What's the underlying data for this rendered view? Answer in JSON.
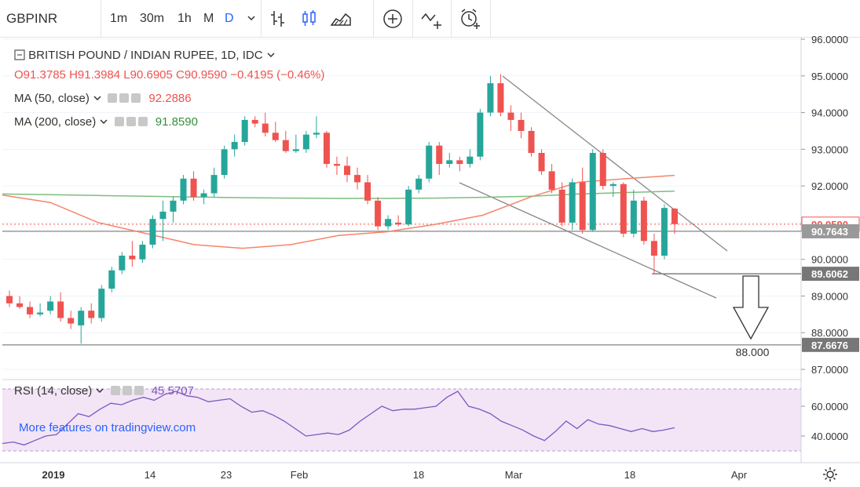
{
  "toolbar": {
    "symbol": "GBPINR",
    "intervals": [
      "1m",
      "30m",
      "1h",
      "M",
      "D"
    ],
    "active_interval": "D",
    "icons": [
      "chevron-down-icon",
      "bar-chart-icon",
      "candlestick-icon",
      "area-chart-icon",
      "compare-add-icon",
      "indicators-icon",
      "alert-icon"
    ]
  },
  "legend": {
    "title": "BRITISH POUND / INDIAN RUPEE, 1D, IDC",
    "ohlc": {
      "o": "O91.3785",
      "h": "H91.3984",
      "l": "L90.6905",
      "c": "C90.9590",
      "chg": "−0.4195 (−0.46%)"
    },
    "ma50": {
      "label": "MA (50, close)",
      "value": "92.2886"
    },
    "ma200": {
      "label": "MA (200, close)",
      "value": "91.8590"
    },
    "rsi": {
      "label": "RSI (14, close)",
      "value": "45.5707"
    }
  },
  "promo": "More features on tradingview.com",
  "colors": {
    "up": "#26a69a",
    "down": "#ef5350",
    "ma50": "#f7846b",
    "ma200": "#7ebd7e",
    "rsi": "#7e57c2",
    "rsi_band": "#f3e5f5"
  },
  "chart_data": {
    "type": "candlestick",
    "title": "BRITISH POUND / INDIAN RUPEE, 1D, IDC",
    "price_range": [
      87.0,
      96.0
    ],
    "price_ticks": [
      "96.0000",
      "95.0000",
      "94.0000",
      "93.0000",
      "92.0000",
      "91.0000",
      "90.0000",
      "89.0000",
      "88.0000",
      "87.0000"
    ],
    "rsi_ticks": [
      "60.0000",
      "40.0000"
    ],
    "x_labels": [
      "2019",
      "14",
      "23",
      "Feb",
      "18",
      "Mar",
      "18",
      "Apr"
    ],
    "price_labels": [
      {
        "text": "90.9590",
        "value": 90.959,
        "kind": "last"
      },
      {
        "text": "90.7643",
        "value": 90.7643,
        "kind": "level"
      },
      {
        "text": "89.6062",
        "value": 89.6062,
        "kind": "level"
      },
      {
        "text": "87.6676",
        "value": 87.6676,
        "kind": "level"
      }
    ],
    "annotation": "88.000",
    "candles": [
      [
        89.0,
        89.15,
        88.7,
        88.8
      ],
      [
        88.8,
        89.0,
        88.65,
        88.7
      ],
      [
        88.7,
        88.85,
        88.4,
        88.5
      ],
      [
        88.5,
        88.8,
        88.45,
        88.55
      ],
      [
        88.6,
        89.0,
        88.5,
        88.85
      ],
      [
        88.85,
        89.1,
        88.3,
        88.4
      ],
      [
        88.4,
        88.6,
        88.1,
        88.25
      ],
      [
        88.2,
        88.7,
        87.7,
        88.6
      ],
      [
        88.6,
        88.8,
        88.25,
        88.4
      ],
      [
        88.4,
        89.3,
        88.3,
        89.2
      ],
      [
        89.2,
        89.8,
        89.1,
        89.7
      ],
      [
        89.7,
        90.2,
        89.6,
        90.1
      ],
      [
        90.1,
        90.5,
        89.8,
        90.0
      ],
      [
        90.0,
        90.5,
        89.9,
        90.4
      ],
      [
        90.4,
        91.2,
        90.3,
        91.1
      ],
      [
        91.1,
        91.6,
        90.5,
        91.3
      ],
      [
        91.3,
        91.7,
        91.0,
        91.6
      ],
      [
        91.6,
        92.3,
        91.5,
        92.2
      ],
      [
        92.2,
        92.4,
        91.6,
        91.7
      ],
      [
        91.7,
        91.9,
        91.5,
        91.8
      ],
      [
        91.8,
        92.5,
        91.7,
        92.3
      ],
      [
        92.3,
        93.1,
        92.2,
        93.0
      ],
      [
        93.0,
        93.4,
        92.8,
        93.2
      ],
      [
        93.2,
        93.9,
        93.1,
        93.8
      ],
      [
        93.8,
        93.9,
        93.6,
        93.7
      ],
      [
        93.7,
        94.0,
        93.35,
        93.45
      ],
      [
        93.45,
        93.75,
        93.2,
        93.25
      ],
      [
        93.25,
        93.5,
        92.9,
        92.95
      ],
      [
        92.95,
        93.4,
        92.9,
        93.0
      ],
      [
        93.0,
        93.5,
        92.9,
        93.4
      ],
      [
        93.4,
        93.9,
        93.3,
        93.45
      ],
      [
        93.45,
        93.5,
        92.5,
        92.6
      ],
      [
        92.6,
        92.8,
        92.3,
        92.55
      ],
      [
        92.55,
        92.8,
        92.1,
        92.3
      ],
      [
        92.3,
        92.5,
        91.9,
        92.1
      ],
      [
        92.1,
        92.3,
        91.5,
        91.6
      ],
      [
        91.6,
        91.7,
        90.8,
        90.9
      ],
      [
        90.9,
        91.2,
        90.8,
        91.1
      ],
      [
        91.0,
        91.2,
        90.9,
        90.95
      ],
      [
        90.95,
        92.0,
        90.9,
        91.9
      ],
      [
        91.9,
        92.3,
        91.8,
        92.2
      ],
      [
        92.2,
        93.2,
        92.1,
        93.1
      ],
      [
        93.1,
        93.2,
        92.3,
        92.6
      ],
      [
        92.6,
        92.9,
        92.5,
        92.7
      ],
      [
        92.7,
        92.8,
        92.4,
        92.6
      ],
      [
        92.6,
        93.0,
        92.5,
        92.8
      ],
      [
        92.8,
        94.1,
        92.7,
        94.0
      ],
      [
        94.0,
        95.0,
        93.9,
        94.8
      ],
      [
        94.8,
        95.05,
        93.9,
        94.0
      ],
      [
        94.0,
        94.2,
        93.5,
        93.8
      ],
      [
        93.8,
        94.0,
        93.3,
        93.5
      ],
      [
        93.5,
        93.6,
        92.8,
        92.9
      ],
      [
        92.9,
        93.0,
        92.3,
        92.4
      ],
      [
        92.4,
        92.6,
        91.8,
        91.9
      ],
      [
        91.9,
        92.1,
        90.9,
        91.0
      ],
      [
        91.0,
        92.2,
        90.8,
        92.1
      ],
      [
        92.1,
        92.5,
        90.7,
        90.8
      ],
      [
        90.8,
        93.0,
        90.75,
        92.9
      ],
      [
        92.9,
        93.0,
        91.9,
        92.0
      ],
      [
        92.0,
        92.1,
        91.7,
        92.05
      ],
      [
        92.05,
        92.1,
        90.6,
        90.7
      ],
      [
        90.7,
        91.9,
        90.6,
        91.6
      ],
      [
        91.6,
        91.7,
        90.4,
        90.5
      ],
      [
        90.5,
        90.7,
        89.6,
        90.1
      ],
      [
        90.1,
        91.5,
        90.0,
        91.4
      ],
      [
        91.38,
        91.4,
        90.69,
        90.96
      ]
    ],
    "ma50": [
      91.75,
      91.55,
      91.0,
      90.7,
      90.4,
      90.3,
      90.4,
      90.65,
      90.75,
      90.95,
      91.2,
      91.7,
      92.1,
      92.2,
      92.29
    ],
    "ma200": [
      91.78,
      91.76,
      91.74,
      91.72,
      91.7,
      91.68,
      91.67,
      91.66,
      91.66,
      91.67,
      91.69,
      91.72,
      91.78,
      91.82,
      91.86
    ],
    "rsi": [
      35,
      36,
      34,
      37,
      40,
      41,
      48,
      55,
      53,
      58,
      62,
      61,
      64,
      66,
      64,
      68,
      70,
      67,
      66,
      63,
      64,
      65,
      60,
      56,
      57,
      54,
      50,
      45,
      40,
      41,
      42,
      41,
      44,
      50,
      55,
      60,
      57,
      58,
      58,
      59,
      60,
      66,
      70,
      60,
      58,
      55,
      50,
      47,
      44,
      40,
      37,
      43,
      50,
      45,
      51,
      48,
      47,
      45,
      43,
      45,
      43,
      44,
      45.57
    ]
  }
}
